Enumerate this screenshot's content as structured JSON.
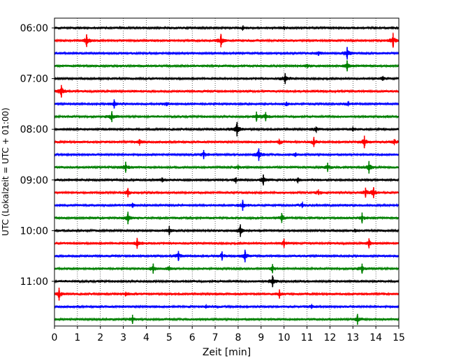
{
  "chart_data": {
    "type": "line",
    "title": "",
    "xlabel": "Zeit  [min]",
    "ylabel": "UTC (Lokalzeit = UTC + 01:00)",
    "xlim": [
      0,
      15
    ],
    "x_ticks": [
      "0",
      "1",
      "2",
      "3",
      "4",
      "5",
      "6",
      "7",
      "8",
      "9",
      "10",
      "11",
      "12",
      "13",
      "14",
      "15"
    ],
    "y_ticks": [
      {
        "label": "06:00",
        "trace": 0
      },
      {
        "label": "07:00",
        "trace": 4
      },
      {
        "label": "08:00",
        "trace": 8
      },
      {
        "label": "09:00",
        "trace": 12
      },
      {
        "label": "10:00",
        "trace": 16
      },
      {
        "label": "11:00",
        "trace": 20
      }
    ],
    "grid": "vertical dotted",
    "color_cycle": [
      "#000000",
      "#ff0000",
      "#0000ff",
      "#008000"
    ],
    "series": [
      {
        "start": "06:00",
        "events": [
          {
            "t": 8.2,
            "a": 0.3
          },
          {
            "t": 10.0,
            "a": 0.25
          }
        ]
      },
      {
        "start": "06:15",
        "events": [
          {
            "t": 1.4,
            "a": 1.0
          },
          {
            "t": 7.25,
            "a": 1.1
          },
          {
            "t": 14.75,
            "a": 1.2
          }
        ]
      },
      {
        "start": "06:30",
        "events": [
          {
            "t": 11.5,
            "a": 0.4
          },
          {
            "t": 12.75,
            "a": 1.0
          }
        ]
      },
      {
        "start": "06:45",
        "events": [
          {
            "t": 11.0,
            "a": 0.3
          },
          {
            "t": 12.75,
            "a": 0.8
          }
        ]
      },
      {
        "start": "07:00",
        "events": [
          {
            "t": 10.05,
            "a": 0.8
          },
          {
            "t": 14.3,
            "a": 0.4
          }
        ]
      },
      {
        "start": "07:15",
        "events": [
          {
            "t": 0.3,
            "a": 1.0
          }
        ]
      },
      {
        "start": "07:30",
        "events": [
          {
            "t": 2.6,
            "a": 0.6
          },
          {
            "t": 4.9,
            "a": 0.4
          },
          {
            "t": 10.1,
            "a": 0.4
          },
          {
            "t": 12.8,
            "a": 0.4
          }
        ]
      },
      {
        "start": "07:45",
        "events": [
          {
            "t": 2.5,
            "a": 0.8
          },
          {
            "t": 8.8,
            "a": 0.7
          },
          {
            "t": 9.2,
            "a": 0.6
          }
        ]
      },
      {
        "start": "08:00",
        "events": [
          {
            "t": 7.95,
            "a": 1.2
          },
          {
            "t": 11.4,
            "a": 0.5
          },
          {
            "t": 13.0,
            "a": 0.4
          }
        ]
      },
      {
        "start": "08:15",
        "events": [
          {
            "t": 3.7,
            "a": 0.5
          },
          {
            "t": 9.8,
            "a": 0.5
          },
          {
            "t": 11.3,
            "a": 0.7
          },
          {
            "t": 13.5,
            "a": 1.0
          },
          {
            "t": 14.8,
            "a": 0.5
          }
        ]
      },
      {
        "start": "08:30",
        "events": [
          {
            "t": 6.5,
            "a": 0.6
          },
          {
            "t": 8.9,
            "a": 1.0
          },
          {
            "t": 10.5,
            "a": 0.4
          }
        ]
      },
      {
        "start": "08:45",
        "events": [
          {
            "t": 3.1,
            "a": 0.8
          },
          {
            "t": 8.0,
            "a": 0.4
          },
          {
            "t": 11.9,
            "a": 0.6
          },
          {
            "t": 13.7,
            "a": 1.0
          }
        ]
      },
      {
        "start": "09:00",
        "events": [
          {
            "t": 4.7,
            "a": 0.4
          },
          {
            "t": 7.9,
            "a": 0.5
          },
          {
            "t": 9.1,
            "a": 0.8
          },
          {
            "t": 10.6,
            "a": 0.5
          }
        ]
      },
      {
        "start": "09:15",
        "events": [
          {
            "t": 3.2,
            "a": 0.6
          },
          {
            "t": 11.5,
            "a": 0.5
          },
          {
            "t": 13.55,
            "a": 0.7
          },
          {
            "t": 13.9,
            "a": 0.8
          }
        ]
      },
      {
        "start": "09:30",
        "events": [
          {
            "t": 3.4,
            "a": 0.4
          },
          {
            "t": 8.2,
            "a": 0.8
          },
          {
            "t": 10.8,
            "a": 0.5
          }
        ]
      },
      {
        "start": "09:45",
        "events": [
          {
            "t": 3.2,
            "a": 1.0
          },
          {
            "t": 9.9,
            "a": 0.7
          },
          {
            "t": 13.4,
            "a": 0.8
          }
        ]
      },
      {
        "start": "10:00",
        "events": [
          {
            "t": 5.0,
            "a": 0.6
          },
          {
            "t": 8.1,
            "a": 1.0
          },
          {
            "t": 13.1,
            "a": 0.3
          }
        ]
      },
      {
        "start": "10:15",
        "events": [
          {
            "t": 3.6,
            "a": 0.8
          },
          {
            "t": 10.0,
            "a": 0.6
          },
          {
            "t": 13.7,
            "a": 0.7
          }
        ]
      },
      {
        "start": "10:30",
        "events": [
          {
            "t": 5.4,
            "a": 0.7
          },
          {
            "t": 7.3,
            "a": 0.6
          },
          {
            "t": 8.3,
            "a": 1.0
          }
        ]
      },
      {
        "start": "10:45",
        "events": [
          {
            "t": 4.3,
            "a": 0.7
          },
          {
            "t": 5.0,
            "a": 0.5
          },
          {
            "t": 9.5,
            "a": 0.6
          },
          {
            "t": 13.4,
            "a": 0.7
          }
        ]
      },
      {
        "start": "11:00",
        "events": [
          {
            "t": 9.5,
            "a": 0.9
          }
        ]
      },
      {
        "start": "11:15",
        "events": [
          {
            "t": 0.2,
            "a": 1.0
          },
          {
            "t": 3.1,
            "a": 0.3
          },
          {
            "t": 9.8,
            "a": 0.6
          }
        ]
      },
      {
        "start": "11:30",
        "events": [
          {
            "t": 6.6,
            "a": 0.3
          },
          {
            "t": 11.2,
            "a": 0.4
          }
        ]
      },
      {
        "start": "11:45",
        "events": [
          {
            "t": 3.4,
            "a": 0.6
          },
          {
            "t": 13.2,
            "a": 0.8
          }
        ]
      }
    ]
  }
}
